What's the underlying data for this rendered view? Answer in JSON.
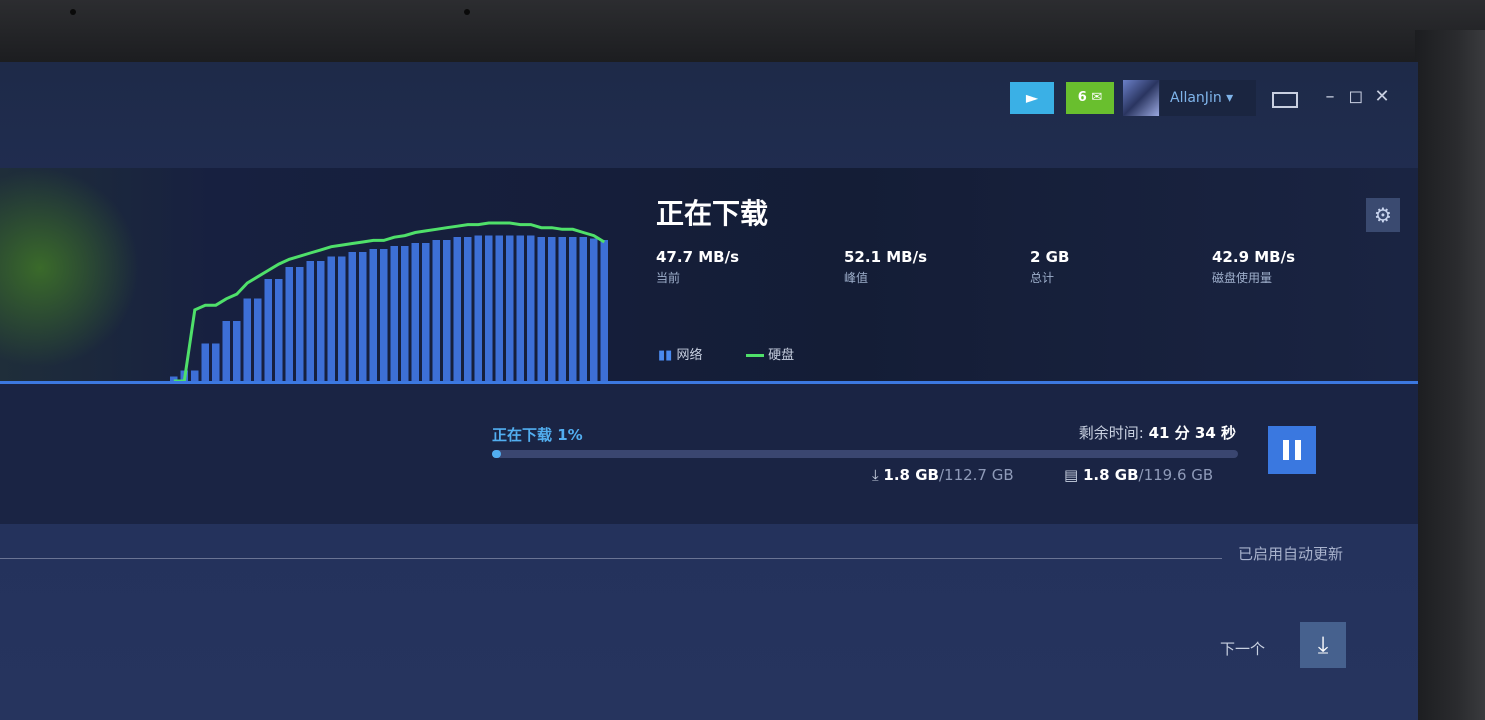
{
  "header": {
    "message_count": "6",
    "username": "AllanJin",
    "username_caret": "▾"
  },
  "download": {
    "title": "正在下载",
    "stats": [
      {
        "value": "47.7 MB/s",
        "label": "当前"
      },
      {
        "value": "52.1 MB/s",
        "label": "峰值"
      },
      {
        "value": "2 GB",
        "label": "总计"
      },
      {
        "value": "42.9 MB/s",
        "label": "磁盘使用量"
      }
    ],
    "legend_network": "网络",
    "legend_disk": "硬盘",
    "progress_label": "正在下载 1%",
    "progress_fraction": 0.01,
    "remaining_label": "剩余时间:",
    "remaining_value": "41 分 34 秒",
    "downloaded": "1.8 GB",
    "download_total": "/112.7 GB",
    "disk_written": "1.8 GB",
    "disk_total": "/119.6 GB"
  },
  "auto_update_label": "已启用自动更新",
  "next_label": "下一个",
  "colors": {
    "accent": "#3c78e0",
    "progress": "#52aef0",
    "disk_line": "#4fe06a",
    "notif": "#3ab0e6",
    "message": "#69bf2e"
  },
  "graph": {
    "network_bars": [
      3,
      7,
      7,
      25,
      25,
      40,
      40,
      55,
      55,
      68,
      68,
      76,
      76,
      80,
      80,
      83,
      83,
      86,
      86,
      88,
      88,
      90,
      90,
      92,
      92,
      94,
      94,
      96,
      96,
      97,
      97,
      97,
      97,
      97,
      97,
      96,
      96,
      96,
      96,
      96,
      95,
      94
    ],
    "disk_line": [
      0,
      0,
      45,
      48,
      48,
      52,
      55,
      62,
      66,
      70,
      74,
      77,
      79,
      81,
      83,
      85,
      86,
      87,
      88,
      89,
      89,
      91,
      92,
      94,
      95,
      96,
      97,
      98,
      99,
      99,
      100,
      100,
      100,
      99,
      99,
      97,
      97,
      96,
      96,
      94,
      92,
      88
    ]
  }
}
